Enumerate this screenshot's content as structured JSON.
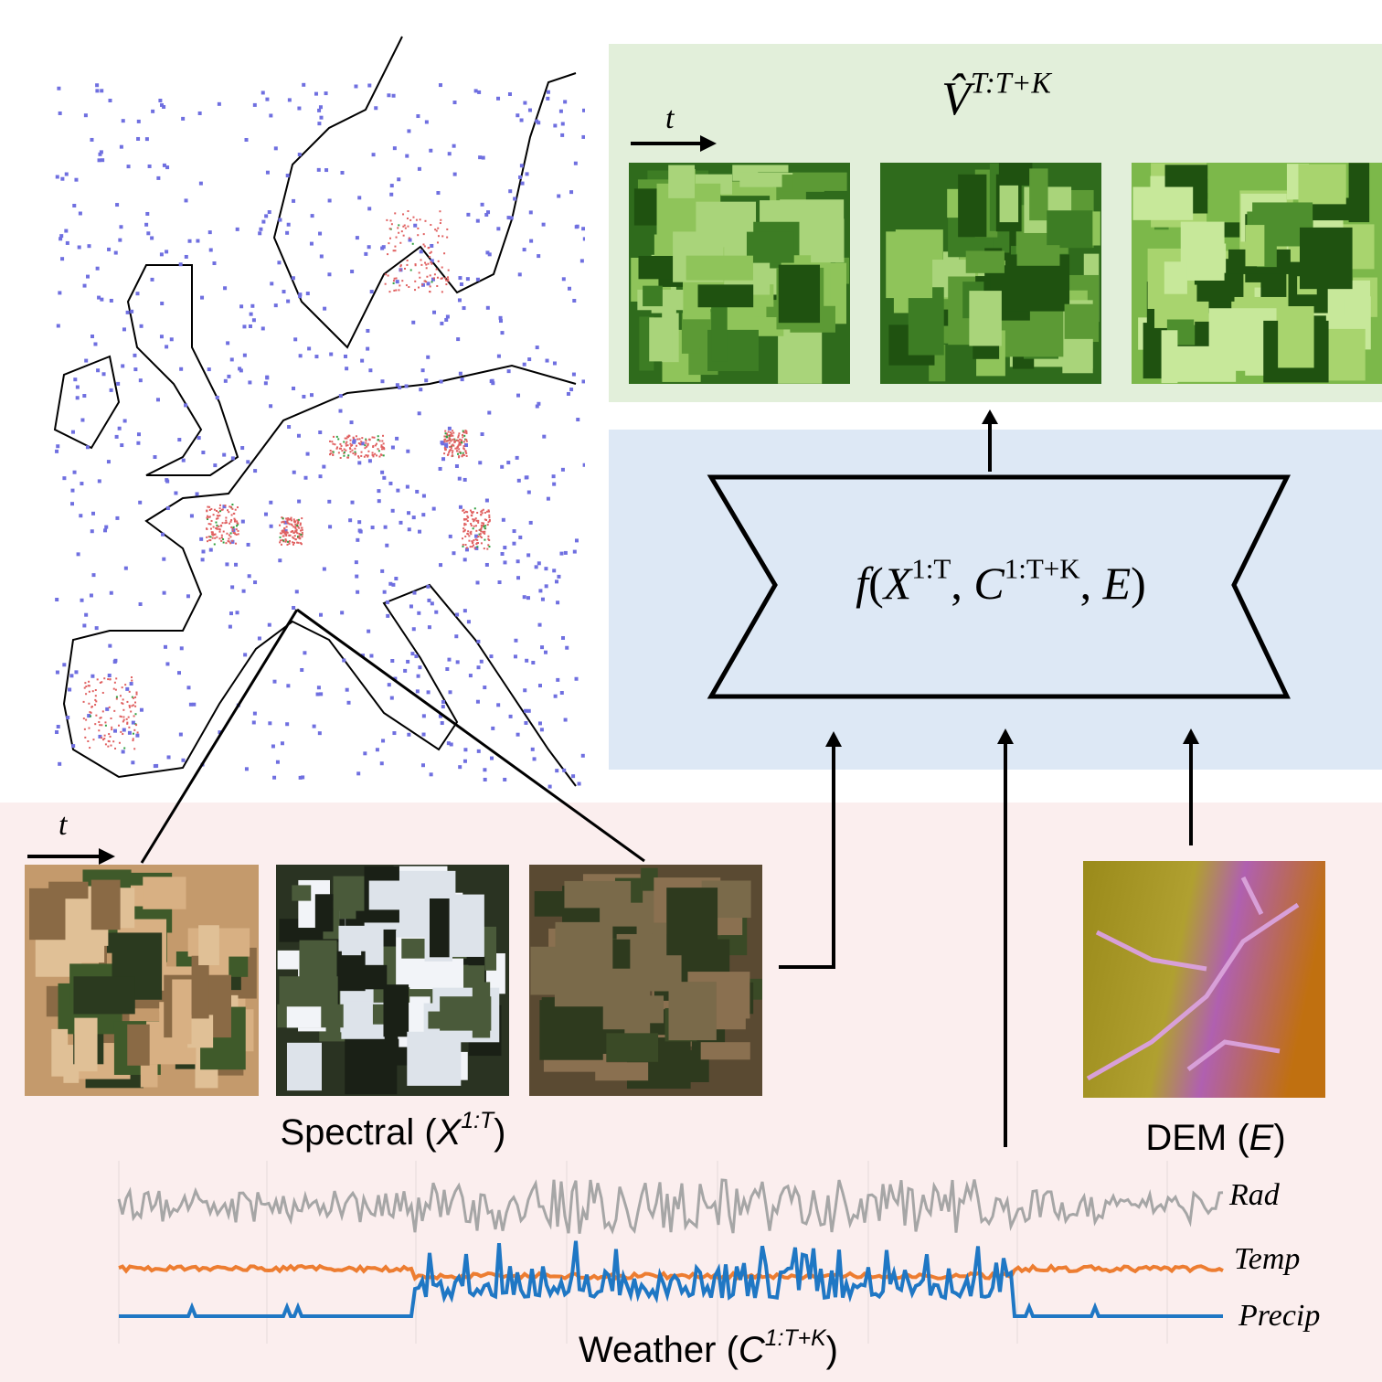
{
  "prediction_panel": {
    "time_label": "t",
    "title": [
      {
        "text": "V̂",
        "italic": true
      },
      {
        "text": "T:T+K",
        "sup": true,
        "italic": true
      }
    ]
  },
  "model_panel": {
    "formula": [
      {
        "text": "f",
        "italic": true
      },
      {
        "text": "("
      },
      {
        "text": "X",
        "italic": true
      },
      {
        "text": "1:T",
        "sup": true
      },
      {
        "text": ", "
      },
      {
        "text": "C",
        "italic": true
      },
      {
        "text": "1:T+K",
        "sup": true
      },
      {
        "text": ", "
      },
      {
        "text": "E",
        "italic": true
      },
      {
        "text": ")"
      }
    ]
  },
  "inputs": {
    "time_label": "t",
    "spectral_label": [
      {
        "text": "Spectral ("
      },
      {
        "text": "X",
        "italic": true
      },
      {
        "text": "1:T",
        "sup": true,
        "italic": true
      },
      {
        "text": ")"
      }
    ],
    "dem_label": [
      {
        "text": "DEM ("
      },
      {
        "text": "E",
        "italic": true
      },
      {
        "text": ")"
      }
    ],
    "weather_label": [
      {
        "text": "Weather ("
      },
      {
        "text": "C",
        "italic": true
      },
      {
        "text": "1:T+K",
        "sup": true,
        "italic": true
      },
      {
        "text": ")"
      }
    ],
    "weather_series": [
      {
        "name": "Rad",
        "color": "#a6a6a6"
      },
      {
        "name": "Temp",
        "color": "#ed7d31"
      },
      {
        "name": "Precip",
        "color": "#1f77c4"
      }
    ]
  }
}
